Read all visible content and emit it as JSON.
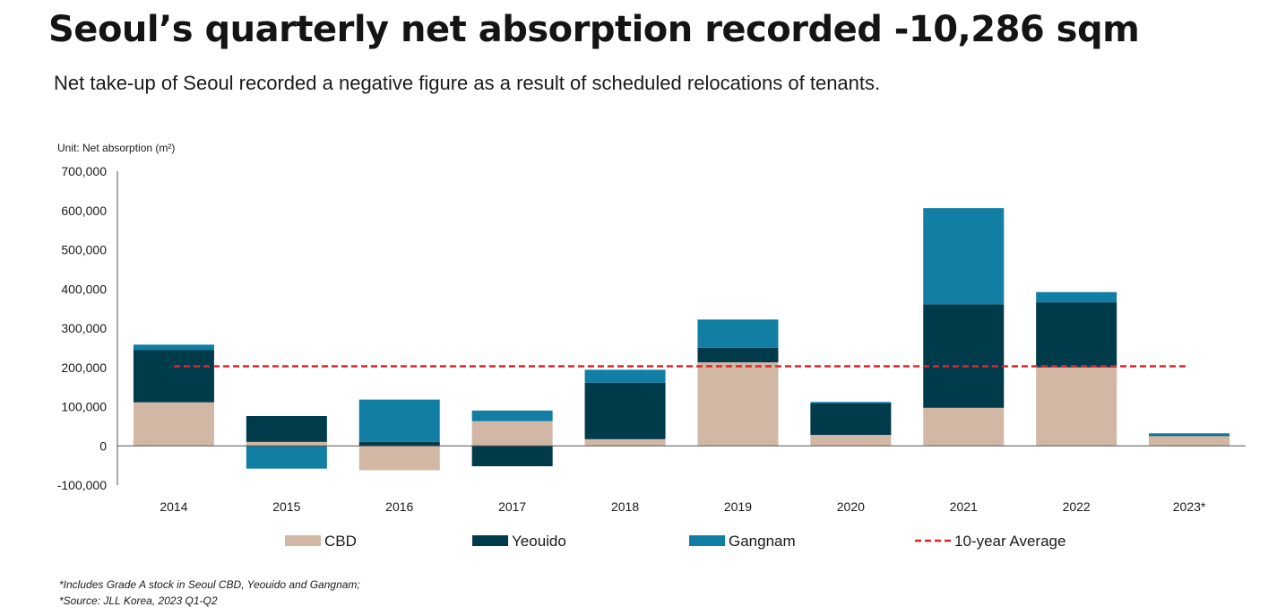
{
  "title": "Seoul’s quarterly net absorption recorded -10,286 sqm",
  "subtitle": "Net take-up of Seoul recorded a negative figure as a result of scheduled relocations of tenants.",
  "unit_label": "Unit: Net absorption (m²)",
  "footnotes": [
    "*Includes Grade A stock in Seoul CBD, Yeouido and Gangnam;",
    "*Source: JLL Korea, 2023 Q1-Q2"
  ],
  "colors": {
    "cbd": "#d2b7a5",
    "yeouido": "#003b4b",
    "gangnam": "#117ea4",
    "average": "#e0242b",
    "axis": "#555555"
  },
  "chart_data": {
    "type": "bar",
    "stacked": true,
    "categories": [
      "2014",
      "2015",
      "2016",
      "2017",
      "2018",
      "2019",
      "2020",
      "2021",
      "2022",
      "2023*"
    ],
    "series": [
      {
        "name": "CBD",
        "values": [
          111000,
          10000,
          -62000,
          63000,
          17000,
          213000,
          28000,
          97000,
          200000,
          25000
        ]
      },
      {
        "name": "Yeouido",
        "values": [
          133000,
          66000,
          10000,
          -52000,
          144000,
          37000,
          80000,
          264000,
          166000,
          2000
        ]
      },
      {
        "name": "Gangnam",
        "values": [
          14000,
          -58000,
          108000,
          27000,
          33000,
          72000,
          4000,
          245000,
          26000,
          5000
        ]
      }
    ],
    "reference_line": {
      "name": "10-year Average",
      "value": 203000,
      "style": "dashed"
    },
    "ylim": [
      -100000,
      700000
    ],
    "yticks": [
      -100000,
      0,
      100000,
      200000,
      300000,
      400000,
      500000,
      600000,
      700000
    ],
    "ytick_labels": [
      "-100,000",
      "0",
      "100,000",
      "200,000",
      "300,000",
      "400,000",
      "500,000",
      "600,000",
      "700,000"
    ],
    "legend": [
      "CBD",
      "Yeouido",
      "Gangnam",
      "10-year Average"
    ],
    "legend_position": "bottom",
    "grid": false
  }
}
